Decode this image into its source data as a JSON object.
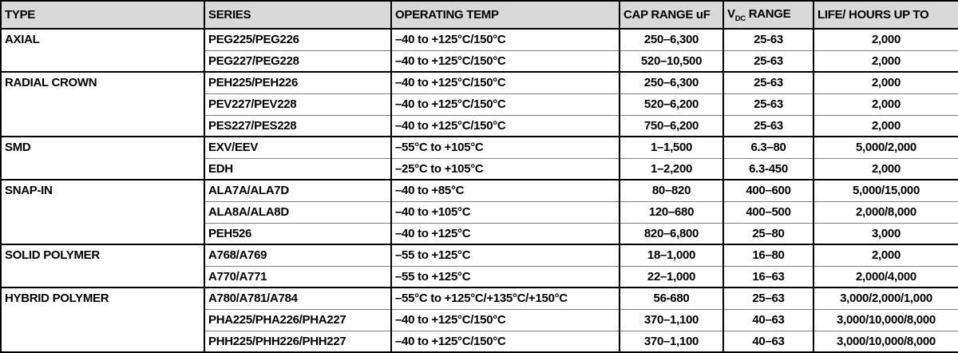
{
  "colors": {
    "header_bg": "#d9d9d9",
    "border_black": "#000000",
    "row_divider_gray": "#7f7f7f",
    "text": "#000000"
  },
  "table": {
    "headers": {
      "type": "TYPE",
      "series": "SERIES",
      "temp": "OPERATING TEMP",
      "cap": "CAP RANGE uF",
      "vdc_prefix": "V",
      "vdc_sub": "DC",
      "vdc_suffix": " RANGE",
      "life": "LIFE/ HOURS UP TO"
    },
    "groups": [
      {
        "type": "AXIAL",
        "rows": [
          {
            "series": "PEG225/PEG226",
            "temp": "–40 to +125°C/150°C",
            "cap": "250–6,300",
            "vdc": "25-63",
            "life": "2,000"
          },
          {
            "series": "PEG227/PEG228",
            "temp": "–40 to +125°C/150°C",
            "cap": "520–10,500",
            "vdc": "25-63",
            "life": "2,000"
          }
        ]
      },
      {
        "type": "RADIAL CROWN",
        "rows": [
          {
            "series": "PEH225/PEH226",
            "temp": "–40 to +125°C/150°C",
            "cap": "250–6,300",
            "vdc": "25-63",
            "life": "2,000"
          },
          {
            "series": "PEV227/PEV228",
            "temp": "–40 to +125°C/150°C",
            "cap": "520–6,200",
            "vdc": "25-63",
            "life": "2,000"
          },
          {
            "series": "PES227/PES228",
            "temp": "–40 to +125°C/150°C",
            "cap": "750–6,200",
            "vdc": "25-63",
            "life": "2,000"
          }
        ]
      },
      {
        "type": "SMD",
        "rows": [
          {
            "series": "EXV/EEV",
            "temp": "–55°C to +105°C",
            "cap": "1–1,500",
            "vdc": "6.3–80",
            "life": "5,000/2,000"
          },
          {
            "series": "EDH",
            "temp": "–25°C to +105°C",
            "cap": "1–2,200",
            "vdc": "6.3-450",
            "life": "2,000"
          }
        ]
      },
      {
        "type": "SNAP-IN",
        "rows": [
          {
            "series": "ALA7A/ALA7D",
            "temp": "–40 to +85°C",
            "cap": "80–820",
            "vdc": "400–600",
            "life": "5,000/15,000"
          },
          {
            "series": "ALA8A/ALA8D",
            "temp": "–40 to +105°C",
            "cap": "120–680",
            "vdc": "400–500",
            "life": "2,000/8,000"
          },
          {
            "series": "PEH526",
            "temp": "–40 to +125°C",
            "cap": "820–6,800",
            "vdc": "25–80",
            "life": "3,000"
          }
        ]
      },
      {
        "type": "SOLID POLYMER",
        "rows": [
          {
            "series": "A768/A769",
            "temp": "–55 to +125°C",
            "cap": "18–1,000",
            "vdc": "16–80",
            "life": "2,000"
          },
          {
            "series": "A770/A771",
            "temp": "–55 to +125°C",
            "cap": "22–1,000",
            "vdc": "16–63",
            "life": "2,000/4,000"
          }
        ]
      },
      {
        "type": "HYBRID POLYMER",
        "rows": [
          {
            "series": "A780/A781/A784",
            "temp": "–55°C to +125°C/+135°C/+150°C",
            "cap": "56-680",
            "vdc": "25–63",
            "life": "3,000/2,000/1,000"
          },
          {
            "series": "PHA225/PHA226/PHA227",
            "temp": "–40 to +125°C/150°C",
            "cap": "370–1,100",
            "vdc": "40–63",
            "life": "3,000/10,000/8,000"
          },
          {
            "series": "PHH225/PHH226/PHH227",
            "temp": "–40 to +125°C/150°C",
            "cap": "370–1,100",
            "vdc": "40–63",
            "life": "3,000/10,000/8,000"
          }
        ]
      }
    ]
  }
}
